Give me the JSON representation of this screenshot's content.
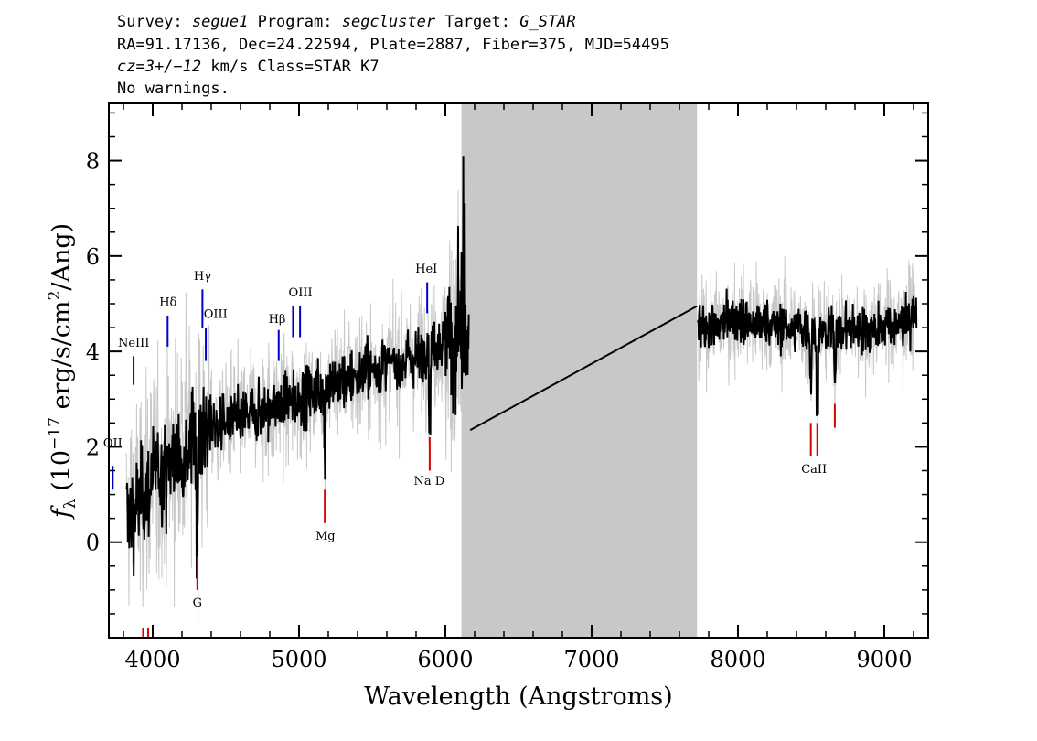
{
  "header": {
    "line1": {
      "survey_label": "Survey:",
      "survey": "segue1",
      "program_label": "Program:",
      "program": "segcluster",
      "target_label": "Target:",
      "target": "G_STAR"
    },
    "line2": "RA=91.17136, Dec=24.22594, Plate=2887, Fiber=375, MJD=54495",
    "line3": {
      "cz": "cz=3+/−12",
      "rest": " km/s Class=STAR K7"
    },
    "line4": "No warnings."
  },
  "colors": {
    "flux": "#000000",
    "error": "#c8c8c8",
    "mask": "#c8c8c8",
    "emission": "#0000cc",
    "absorption": "#dd0000"
  },
  "chart_data": {
    "type": "line",
    "xlabel": "Wavelength (Angstroms)",
    "ylabel": "f_λ (10^-17 erg/s/cm^2/Ang)",
    "ylabel_parts": {
      "f": "f",
      "lambda": "λ",
      "p1": " (10",
      "exp1": "−17",
      "p2": " erg/s/cm",
      "exp2": "2",
      "p3": "/Ang)"
    },
    "xlim": [
      3700,
      9300
    ],
    "ylim": [
      -2,
      9.2
    ],
    "xticks": [
      "4000",
      "5000",
      "6000",
      "7000",
      "8000",
      "9000"
    ],
    "yticks": [
      "0",
      "2",
      "4",
      "6",
      "8"
    ],
    "grid": false,
    "masked_region": [
      6110,
      7720
    ],
    "interpolated_segment": {
      "x": [
        6170,
        7720
      ],
      "y": [
        2.35,
        4.95
      ]
    },
    "continuum_estimate": {
      "x": [
        3800,
        3900,
        4000,
        4100,
        4200,
        4300,
        4400,
        4500,
        4600,
        4700,
        4800,
        4900,
        5000,
        5100,
        5200,
        5300,
        5400,
        5500,
        5600,
        5700,
        5800,
        5900,
        6000,
        6100,
        7750,
        7800,
        7900,
        8000,
        8100,
        8200,
        8300,
        8400,
        8500,
        8600,
        8700,
        8800,
        8900,
        9000,
        9100,
        9200
      ],
      "y": [
        0.5,
        0.8,
        1.3,
        1.6,
        1.9,
        2.2,
        2.4,
        2.5,
        2.6,
        2.7,
        2.8,
        2.9,
        3.0,
        3.15,
        3.3,
        3.4,
        3.5,
        3.6,
        3.7,
        3.8,
        3.9,
        4.1,
        4.2,
        4.3,
        4.5,
        4.5,
        4.6,
        4.7,
        4.6,
        4.6,
        4.5,
        4.5,
        4.4,
        4.4,
        4.5,
        4.5,
        4.4,
        4.6,
        4.5,
        4.8
      ]
    },
    "emission_lines": [
      {
        "label": "OII",
        "x": 3727,
        "y": [
          1.1,
          1.6
        ]
      },
      {
        "label": "NeIII",
        "x": 3869,
        "y": [
          3.3,
          3.9
        ]
      },
      {
        "label": "Hδ",
        "x": 4102,
        "y": [
          4.1,
          4.75
        ]
      },
      {
        "label": "Hγ",
        "x": 4340,
        "y": [
          4.5,
          5.3
        ]
      },
      {
        "label": "OIII",
        "x": 4363,
        "y": [
          3.8,
          4.5
        ]
      },
      {
        "label": "Hβ",
        "x": 4861,
        "y": [
          3.8,
          4.45
        ]
      },
      {
        "label": "OIII",
        "x": 4959,
        "y": [
          4.3,
          4.95
        ]
      },
      {
        "label": "OIII",
        "x": 5007,
        "y": [
          4.3,
          4.95
        ]
      },
      {
        "label": "HeI",
        "x": 5876,
        "y": [
          4.8,
          5.45
        ]
      }
    ],
    "absorption_lines": [
      {
        "label": "",
        "x": 3934,
        "y": [
          -2.2,
          -1.8
        ]
      },
      {
        "label": "",
        "x": 3969,
        "y": [
          -2.2,
          -1.8
        ]
      },
      {
        "label": "G",
        "x": 4305,
        "y": [
          -1.0,
          -0.3
        ]
      },
      {
        "label": "Mg",
        "x": 5176,
        "y": [
          0.4,
          1.1
        ]
      },
      {
        "label": "Na D",
        "x": 5893,
        "y": [
          1.5,
          2.2
        ]
      },
      {
        "label": "CaII",
        "x": 8498,
        "y": [
          1.8,
          2.5
        ]
      },
      {
        "label": "CaII",
        "x": 8542,
        "y": [
          1.8,
          2.5
        ]
      },
      {
        "label": "",
        "x": 8662,
        "y": [
          2.4,
          2.9
        ]
      }
    ],
    "line_labels": [
      {
        "text": "OII",
        "x": 3727,
        "y": 2.0
      },
      {
        "text": "NeIII",
        "x": 3870,
        "y": 4.1
      },
      {
        "text": "Hδ",
        "x": 4105,
        "y": 4.95
      },
      {
        "text": "Hγ",
        "x": 4340,
        "y": 5.5
      },
      {
        "text": "OIII",
        "x": 4430,
        "y": 4.7
      },
      {
        "text": "Hβ",
        "x": 4850,
        "y": 4.6
      },
      {
        "text": "OIII",
        "x": 5010,
        "y": 5.15
      },
      {
        "text": "HeI",
        "x": 5870,
        "y": 5.65
      },
      {
        "text": "G",
        "x": 4305,
        "y": -1.35
      },
      {
        "text": "Mg",
        "x": 5180,
        "y": 0.05
      },
      {
        "text": "Na D",
        "x": 5890,
        "y": 1.2
      },
      {
        "text": "CaII",
        "x": 8520,
        "y": 1.45
      }
    ]
  }
}
